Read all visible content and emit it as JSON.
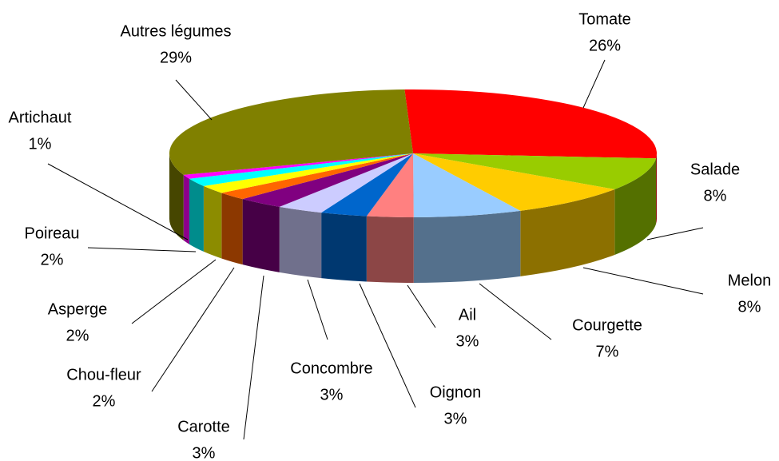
{
  "chart_data": {
    "type": "pie3d",
    "categories": [
      "Tomate",
      "Salade",
      "Melon",
      "Courgette",
      "Ail",
      "Oignon",
      "Concombre",
      "Carotte",
      "Chou-fleur",
      "Asperge",
      "Poireau",
      "Artichaut",
      "Autres légumes"
    ],
    "values": [
      26,
      8,
      8,
      7,
      3,
      3,
      3,
      3,
      2,
      2,
      2,
      1,
      29
    ],
    "value_labels": [
      "26%",
      "8%",
      "8%",
      "7%",
      "3%",
      "3%",
      "3%",
      "3%",
      "2%",
      "2%",
      "2%",
      "1%",
      "29%"
    ],
    "colors": [
      "#ff0000",
      "#99cc00",
      "#ffcc00",
      "#99ccff",
      "#ff8080",
      "#0066cc",
      "#ccccff",
      "#800080",
      "#ff6600",
      "#ffff00",
      "#00ffff",
      "#ff00ff",
      "#808000"
    ]
  }
}
